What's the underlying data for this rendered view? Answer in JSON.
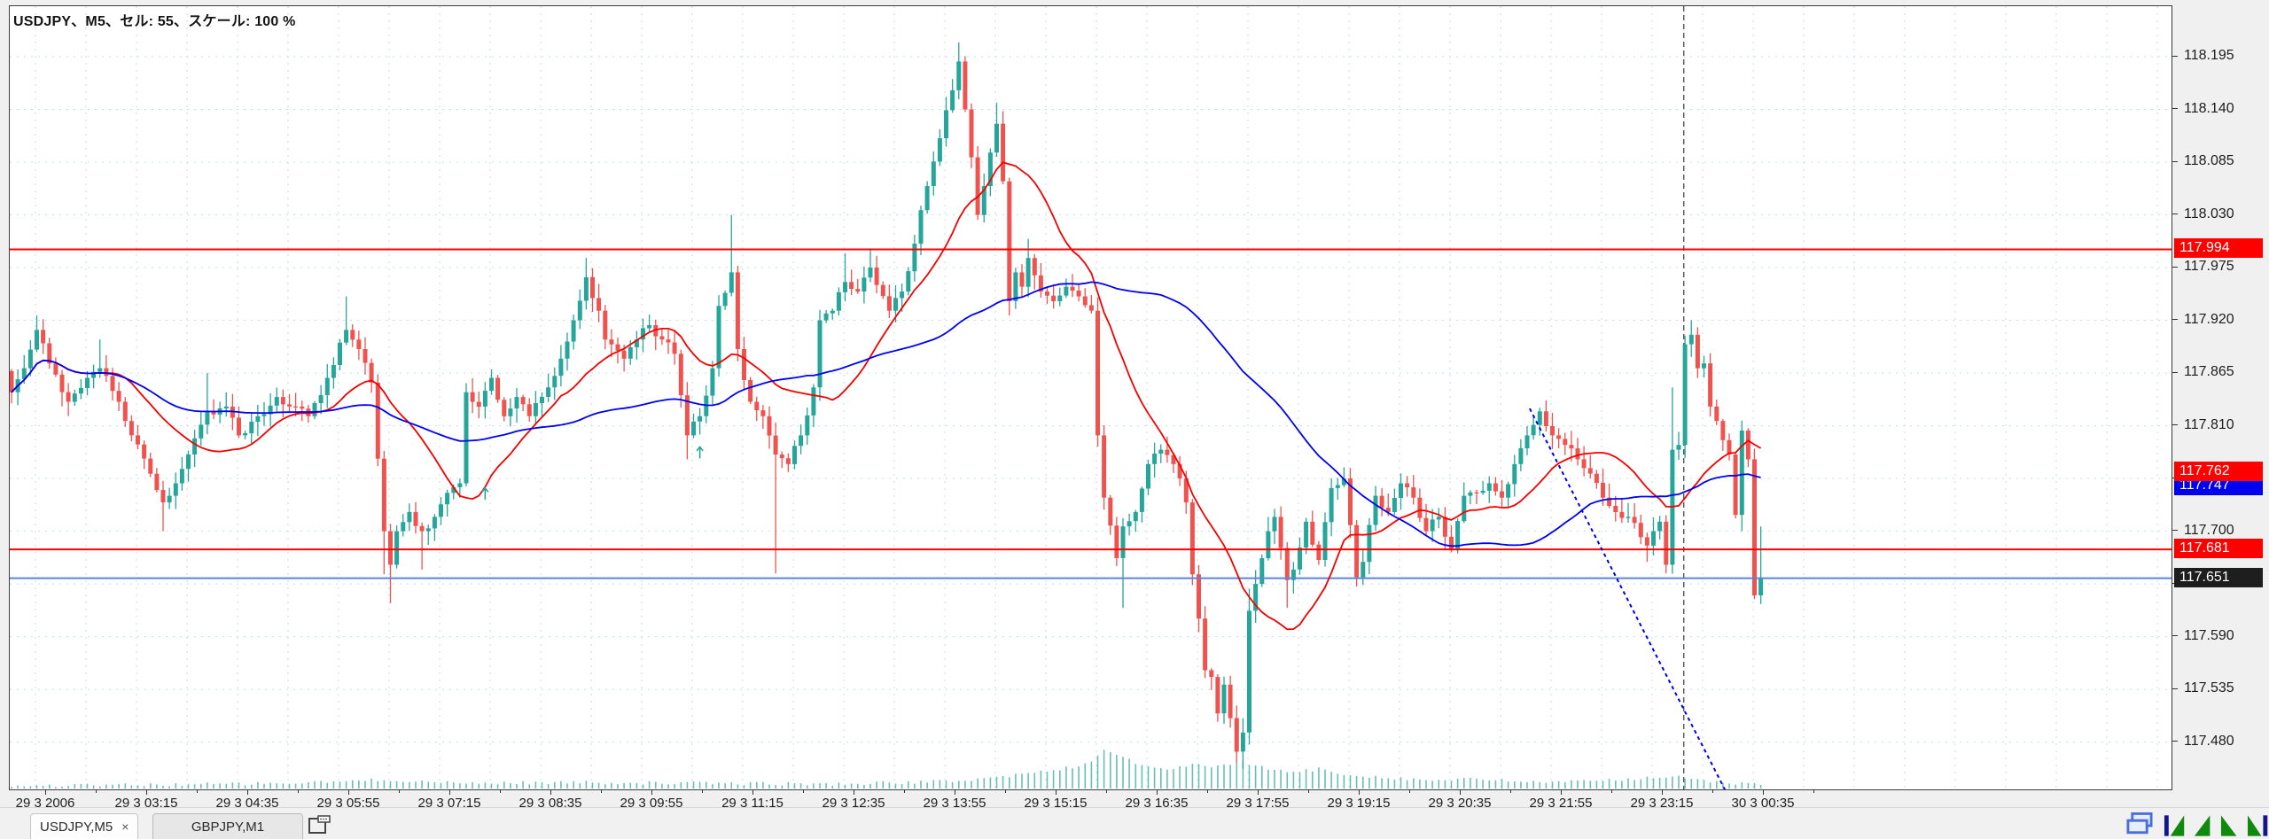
{
  "window": {
    "title": "USDJPY、M5、セル: 55、スケール: 100 %"
  },
  "colors": {
    "bull": "#26a69a",
    "bear": "#ef5350",
    "grid": "#c3ddf0",
    "volume": "#66bfb5",
    "ma_fast": "#f50000",
    "ma_slow": "#0000f0",
    "hline_red": "#ff0000",
    "hline_blue": "#5b85dd",
    "trendline": "#0000e6",
    "separator": "#555555",
    "axis_text": "#1c1c1c",
    "badge_red": "#ff0000",
    "badge_blue": "#0000ee",
    "badge_black": "#1e1e1e",
    "nav_green": "#0f8a0f",
    "nav_navy": "#14148c",
    "cascade_blue": "#4a6fd8"
  },
  "price_axis": {
    "ticks": [
      "118.195",
      "118.140",
      "118.085",
      "118.030",
      "117.975",
      "117.920",
      "117.865",
      "117.810",
      "117.755",
      "117.700",
      "117.645",
      "117.590",
      "117.535",
      "117.480"
    ],
    "badges": [
      {
        "value": "117.994",
        "kind": "red"
      },
      {
        "value": "117.762",
        "kind": "red"
      },
      {
        "value": "117.747",
        "kind": "blue"
      },
      {
        "value": "117.681",
        "kind": "red"
      },
      {
        "value": "117.651",
        "kind": "black"
      }
    ]
  },
  "time_axis": {
    "labels": [
      "29 3 2006",
      "29 3 03:15",
      "29 3 04:35",
      "29 3 05:55",
      "29 3 07:15",
      "29 3 08:35",
      "29 3 09:55",
      "29 3 11:15",
      "29 3 12:35",
      "29 3 13:55",
      "29 3 15:15",
      "29 3 16:35",
      "29 3 17:55",
      "29 3 19:15",
      "29 3 20:35",
      "29 3 21:55",
      "29 3 23:15",
      "30 3 00:35"
    ]
  },
  "chart_data": {
    "type": "candlestick",
    "symbol": "USDJPY",
    "timeframe": "M5",
    "title": "USDJPY、M5、セル: 55、スケール: 100 %",
    "current_price": 117.651,
    "ylim": [
      117.45,
      118.225
    ],
    "y_axis_ticks": [
      118.195,
      118.14,
      118.085,
      118.03,
      117.975,
      117.92,
      117.865,
      117.81,
      117.755,
      117.7,
      117.645,
      117.59,
      117.535,
      117.48
    ],
    "x_labels": [
      "29 3 2006",
      "29 3 03:15",
      "29 3 04:35",
      "29 3 05:55",
      "29 3 07:15",
      "29 3 08:35",
      "29 3 09:55",
      "29 3 11:15",
      "29 3 12:35",
      "29 3 13:55",
      "29 3 15:15",
      "29 3 16:35",
      "29 3 17:55",
      "29 3 19:15",
      "29 3 20:35",
      "29 3 21:55",
      "29 3 23:15",
      "30 3 00:35"
    ],
    "candle_count": 278,
    "close_anchors": [
      [
        0,
        117.845
      ],
      [
        2,
        117.87
      ],
      [
        4,
        117.91
      ],
      [
        6,
        117.875
      ],
      [
        9,
        117.835
      ],
      [
        12,
        117.86
      ],
      [
        14,
        117.87
      ],
      [
        17,
        117.835
      ],
      [
        19,
        117.8
      ],
      [
        22,
        117.76
      ],
      [
        24,
        117.73
      ],
      [
        26,
        117.75
      ],
      [
        28,
        117.78
      ],
      [
        31,
        117.825
      ],
      [
        34,
        117.83
      ],
      [
        36,
        117.8
      ],
      [
        39,
        117.82
      ],
      [
        42,
        117.84
      ],
      [
        45,
        117.83
      ],
      [
        47,
        117.82
      ],
      [
        50,
        117.86
      ],
      [
        53,
        117.91
      ],
      [
        55,
        117.89
      ],
      [
        57,
        117.855
      ],
      [
        59,
        117.7
      ],
      [
        60,
        117.665
      ],
      [
        61,
        117.7
      ],
      [
        63,
        117.72
      ],
      [
        65,
        117.7
      ],
      [
        67,
        117.715
      ],
      [
        69,
        117.74
      ],
      [
        71,
        117.75
      ],
      [
        72,
        117.845
      ],
      [
        74,
        117.83
      ],
      [
        76,
        117.86
      ],
      [
        78,
        117.82
      ],
      [
        80,
        117.84
      ],
      [
        82,
        117.82
      ],
      [
        85,
        117.85
      ],
      [
        87,
        117.88
      ],
      [
        89,
        117.92
      ],
      [
        91,
        117.965
      ],
      [
        93,
        117.93
      ],
      [
        94,
        117.9
      ],
      [
        97,
        117.88
      ],
      [
        99,
        117.9
      ],
      [
        101,
        117.915
      ],
      [
        103,
        117.9
      ],
      [
        105,
        117.885
      ],
      [
        107,
        117.8
      ],
      [
        109,
        117.82
      ],
      [
        111,
        117.87
      ],
      [
        112,
        117.935
      ],
      [
        114,
        117.97
      ],
      [
        115,
        117.89
      ],
      [
        117,
        117.835
      ],
      [
        119,
        117.82
      ],
      [
        121,
        117.78
      ],
      [
        123,
        117.77
      ],
      [
        125,
        117.8
      ],
      [
        127,
        117.85
      ],
      [
        128,
        117.92
      ],
      [
        130,
        117.93
      ],
      [
        132,
        117.96
      ],
      [
        134,
        117.95
      ],
      [
        136,
        117.975
      ],
      [
        139,
        117.93
      ],
      [
        141,
        117.95
      ],
      [
        143,
        118.0
      ],
      [
        145,
        118.06
      ],
      [
        147,
        118.11
      ],
      [
        149,
        118.16
      ],
      [
        150,
        118.19
      ],
      [
        151,
        118.14
      ],
      [
        152,
        118.09
      ],
      [
        153,
        118.03
      ],
      [
        154,
        118.06
      ],
      [
        155,
        118.095
      ],
      [
        156,
        118.125
      ],
      [
        157,
        118.065
      ],
      [
        158,
        117.94
      ],
      [
        159,
        117.97
      ],
      [
        160,
        117.955
      ],
      [
        161,
        117.985
      ],
      [
        163,
        117.95
      ],
      [
        165,
        117.94
      ],
      [
        167,
        117.955
      ],
      [
        169,
        117.945
      ],
      [
        171,
        117.93
      ],
      [
        172,
        117.8
      ],
      [
        173,
        117.735
      ],
      [
        175,
        117.672
      ],
      [
        176,
        117.705
      ],
      [
        178,
        117.72
      ],
      [
        180,
        117.77
      ],
      [
        182,
        117.785
      ],
      [
        184,
        117.77
      ],
      [
        186,
        117.73
      ],
      [
        187,
        117.655
      ],
      [
        189,
        117.555
      ],
      [
        190,
        117.548
      ],
      [
        191,
        117.51
      ],
      [
        192,
        117.54
      ],
      [
        193,
        117.505
      ],
      [
        194,
        117.47
      ],
      [
        195,
        117.49
      ],
      [
        196,
        117.617
      ],
      [
        197,
        117.645
      ],
      [
        199,
        117.7
      ],
      [
        200,
        117.715
      ],
      [
        202,
        117.649
      ],
      [
        203,
        117.66
      ],
      [
        205,
        117.71
      ],
      [
        207,
        117.67
      ],
      [
        209,
        117.745
      ],
      [
        211,
        117.755
      ],
      [
        213,
        117.652
      ],
      [
        214,
        117.668
      ],
      [
        216,
        117.737
      ],
      [
        218,
        117.72
      ],
      [
        220,
        117.75
      ],
      [
        222,
        117.735
      ],
      [
        224,
        117.7
      ],
      [
        226,
        117.715
      ],
      [
        228,
        117.68
      ],
      [
        230,
        117.737
      ],
      [
        232,
        117.74
      ],
      [
        234,
        117.75
      ],
      [
        236,
        117.735
      ],
      [
        238,
        117.77
      ],
      [
        240,
        117.8
      ],
      [
        242,
        117.825
      ],
      [
        244,
        117.8
      ],
      [
        246,
        117.79
      ],
      [
        248,
        117.775
      ],
      [
        250,
        117.76
      ],
      [
        252,
        117.735
      ],
      [
        254,
        117.72
      ],
      [
        256,
        117.715
      ],
      [
        259,
        117.685
      ],
      [
        260,
        117.7
      ],
      [
        261,
        117.71
      ],
      [
        262,
        117.665
      ],
      [
        263,
        117.785
      ],
      [
        264,
        117.79
      ],
      [
        265,
        117.895
      ],
      [
        266,
        117.905
      ],
      [
        267,
        117.87
      ],
      [
        268,
        117.875
      ],
      [
        269,
        117.83
      ],
      [
        270,
        117.815
      ],
      [
        271,
        117.795
      ],
      [
        272,
        117.78
      ],
      [
        273,
        117.717
      ],
      [
        274,
        117.805
      ],
      [
        275,
        117.775
      ],
      [
        276,
        117.633
      ],
      [
        277,
        117.651
      ]
    ],
    "spike_highs": [
      [
        4,
        117.925
      ],
      [
        14,
        117.9
      ],
      [
        31,
        117.865
      ],
      [
        53,
        117.945
      ],
      [
        91,
        117.985
      ],
      [
        114,
        118.03
      ],
      [
        132,
        117.99
      ],
      [
        136,
        117.995
      ],
      [
        150,
        118.21
      ],
      [
        156,
        118.147
      ],
      [
        161,
        118.005
      ],
      [
        196,
        117.64
      ],
      [
        263,
        117.85
      ],
      [
        266,
        117.92
      ],
      [
        277,
        117.705
      ]
    ],
    "spike_lows": [
      [
        24,
        117.7
      ],
      [
        59,
        117.655
      ],
      [
        60,
        117.625
      ],
      [
        65,
        117.66
      ],
      [
        107,
        117.775
      ],
      [
        121,
        117.656
      ],
      [
        176,
        117.62
      ],
      [
        190,
        117.545
      ],
      [
        194,
        117.459
      ],
      [
        195,
        117.452
      ],
      [
        202,
        117.62
      ],
      [
        213,
        117.645
      ],
      [
        259,
        117.668
      ],
      [
        262,
        117.656
      ],
      [
        274,
        117.7
      ],
      [
        276,
        117.632
      ],
      [
        277,
        117.624
      ]
    ],
    "volume_anchors": [
      [
        0,
        3
      ],
      [
        20,
        4
      ],
      [
        45,
        6
      ],
      [
        60,
        10
      ],
      [
        70,
        6
      ],
      [
        90,
        7
      ],
      [
        110,
        6
      ],
      [
        130,
        5
      ],
      [
        148,
        8
      ],
      [
        155,
        12
      ],
      [
        160,
        16
      ],
      [
        164,
        20
      ],
      [
        168,
        24
      ],
      [
        171,
        30
      ],
      [
        173,
        44
      ],
      [
        176,
        36
      ],
      [
        179,
        26
      ],
      [
        183,
        20
      ],
      [
        187,
        28
      ],
      [
        191,
        24
      ],
      [
        195,
        30
      ],
      [
        199,
        22
      ],
      [
        203,
        18
      ],
      [
        207,
        22
      ],
      [
        211,
        16
      ],
      [
        215,
        14
      ],
      [
        219,
        12
      ],
      [
        223,
        10
      ],
      [
        227,
        9
      ],
      [
        231,
        11
      ],
      [
        235,
        9
      ],
      [
        240,
        8
      ],
      [
        246,
        7
      ],
      [
        252,
        9
      ],
      [
        258,
        12
      ],
      [
        263,
        14
      ],
      [
        266,
        10
      ],
      [
        270,
        7
      ],
      [
        274,
        6
      ],
      [
        277,
        4
      ]
    ],
    "moving_averages": [
      {
        "name": "fast-ma",
        "period": 16,
        "color_key": "ma_fast",
        "last_value": 117.762
      },
      {
        "name": "slow-ma",
        "period": 55,
        "color_key": "ma_slow",
        "last_value": 117.747
      }
    ],
    "horizontal_lines": [
      {
        "price": 117.994,
        "color_key": "hline_red",
        "width": 2
      },
      {
        "price": 117.681,
        "color_key": "hline_red",
        "width": 2
      },
      {
        "price": 117.651,
        "color_key": "hline_blue",
        "width": 2
      }
    ],
    "trendline": {
      "index1": 240.4,
      "price1": 117.828,
      "index2": 275.4,
      "price2": 117.378,
      "style": "dashed"
    },
    "day_separator_index": 264.8,
    "markers": [
      {
        "type": "up-arrow",
        "index": 75,
        "price": 117.745
      },
      {
        "type": "up-arrow",
        "index": 109,
        "price": 117.788
      }
    ],
    "grid": true,
    "legend_position": "none"
  },
  "tab_bar": {
    "tabs": [
      {
        "label": "USDJPY,M5",
        "close_label": "×",
        "active": true
      },
      {
        "label": "GBPJPY,M1",
        "active": false
      }
    ],
    "icons": [
      "new-chart-icon"
    ]
  },
  "nav_bar": {
    "icons": [
      "cascade-windows-icon",
      "scroll-start-icon",
      "scroll-left-icon",
      "scroll-right-icon",
      "scroll-end-icon"
    ]
  }
}
